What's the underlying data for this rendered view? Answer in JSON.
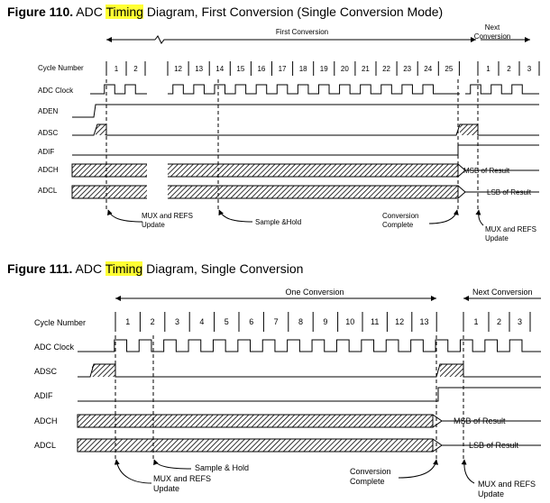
{
  "colors": {
    "highlight": "#ffff33",
    "line": "#000000",
    "background": "#ffffff"
  },
  "fig110": {
    "number": "Figure 110.",
    "pre": "ADC",
    "highlight": "Timing",
    "post": "Diagram, First Conversion (Single Conversion Mode)",
    "span_main": "First Conversion",
    "span_next": [
      "Next",
      "Conversion"
    ],
    "cycle_label": "Cycle Number",
    "cycles_a": [
      "1",
      "2"
    ],
    "cycles_b": [
      "12",
      "13",
      "14",
      "15",
      "16",
      "17",
      "18",
      "19",
      "20",
      "21",
      "22",
      "23",
      "24",
      "25"
    ],
    "cycles_c": [
      "1",
      "2",
      "3"
    ],
    "signals": [
      "ADC Clock",
      "ADEN",
      "ADSC",
      "ADIF",
      "ADCH",
      "ADCL"
    ],
    "msb": "MSB of Result",
    "lsb": "LSB of Result",
    "ann_mux1": [
      "MUX and REFS",
      "Update"
    ],
    "ann_sh": [
      "Sample &Hold"
    ],
    "ann_cc": [
      "Conversion",
      "Complete"
    ],
    "ann_mux2": [
      "MUX and REFS",
      "Update"
    ]
  },
  "fig111": {
    "number": "Figure 111.",
    "pre": "ADC",
    "highlight": "Timing",
    "post": "Diagram, Single Conversion",
    "span_main": "One Conversion",
    "span_next": [
      "Next Conversion"
    ],
    "cycle_label": "Cycle Number",
    "cycles_a": [
      "1",
      "2",
      "3",
      "4",
      "5",
      "6",
      "7",
      "8",
      "9",
      "10",
      "11",
      "12",
      "13"
    ],
    "cycles_c": [
      "1",
      "2",
      "3"
    ],
    "signals": [
      "ADC Clock",
      "ADSC",
      "ADIF",
      "ADCH",
      "ADCL"
    ],
    "msb": "MSB of Result",
    "lsb": "LSB of Result",
    "ann_sh": [
      "Sample & Hold"
    ],
    "ann_mux1": [
      "MUX and REFS",
      "Update"
    ],
    "ann_cc": [
      "Conversion",
      "Complete"
    ],
    "ann_mux2": [
      "MUX and REFS",
      "Update"
    ]
  }
}
